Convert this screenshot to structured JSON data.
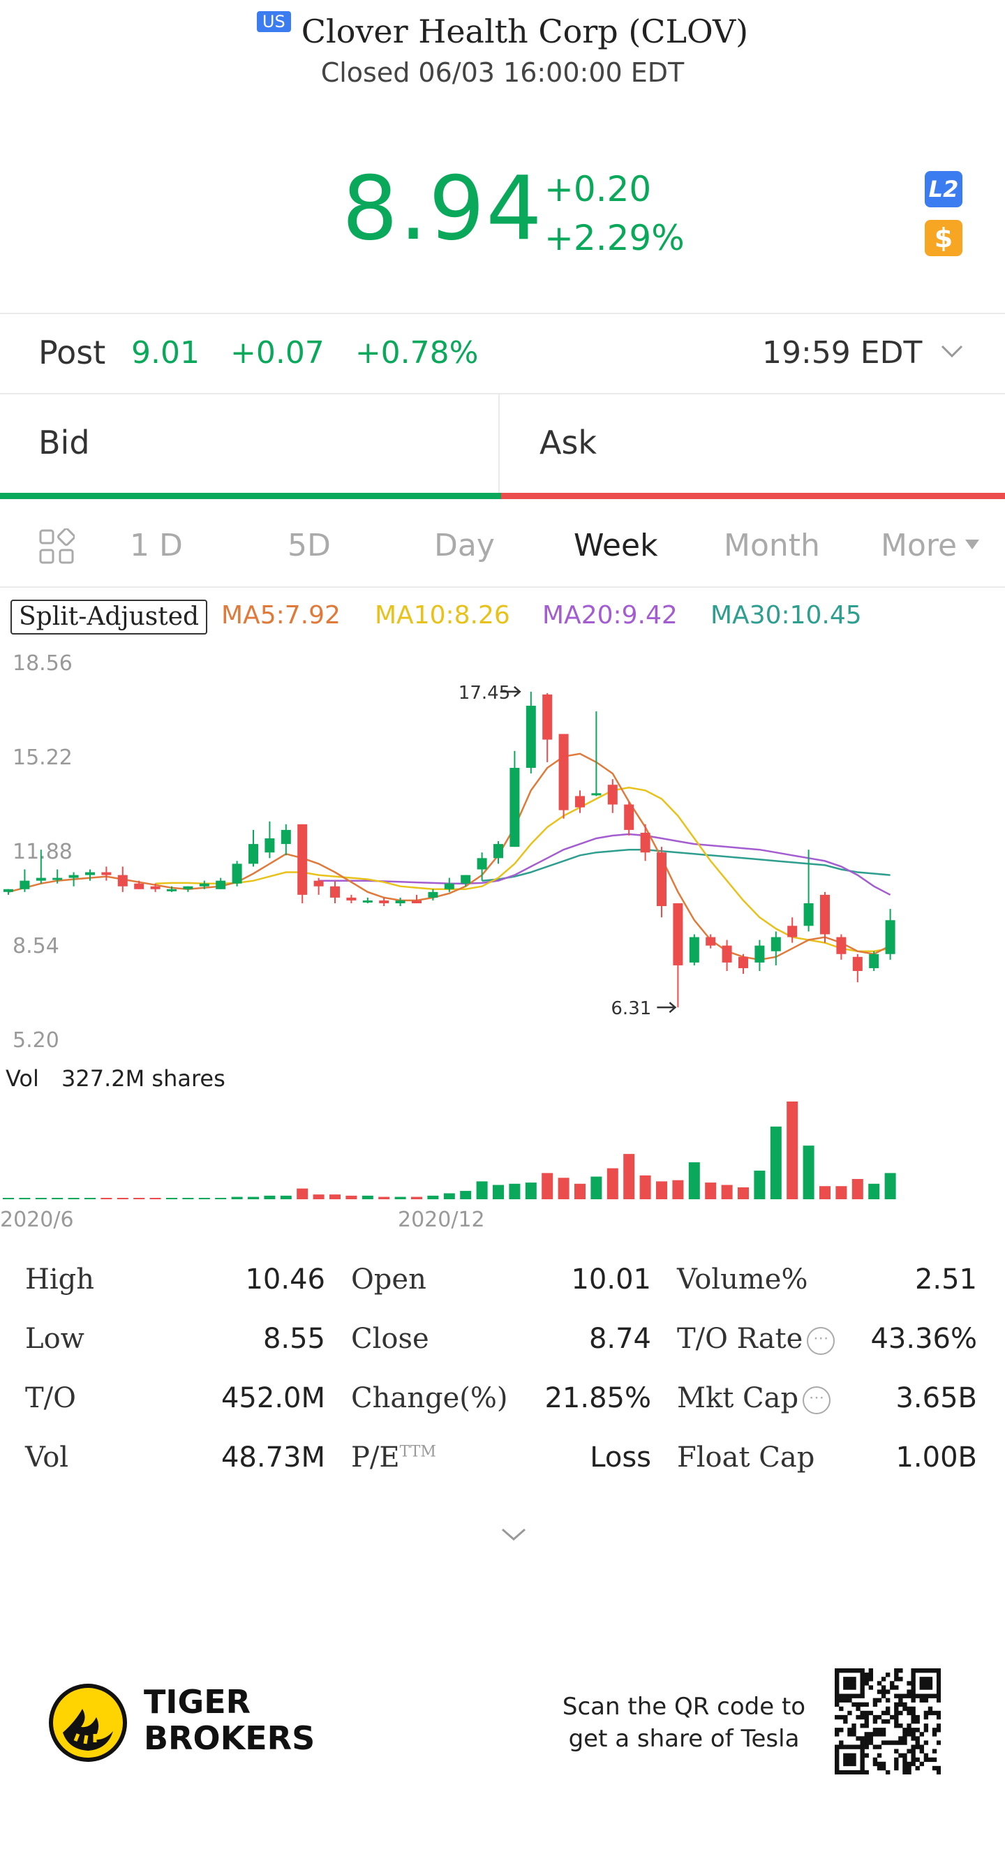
{
  "header": {
    "market_badge": "US",
    "title": "Clover Health Corp (CLOV)",
    "status": "Closed 06/03 16:00:00 EDT",
    "price": "8.94",
    "change": "+0.20",
    "change_pct": "+2.29%",
    "badge_l2": "L2",
    "badge_s": "$"
  },
  "post": {
    "label": "Post",
    "price": "9.01",
    "change": "+0.07",
    "change_pct": "+0.78%",
    "time": "19:59 EDT"
  },
  "quote": {
    "bid": "Bid",
    "ask": "Ask"
  },
  "tabs": [
    "1 D",
    "5D",
    "Day",
    "Week",
    "Month",
    "More"
  ],
  "active_tab": "Week",
  "ma": {
    "split": "Split-Adjusted",
    "ma5": "MA5:7.92",
    "ma10": "MA10:8.26",
    "ma20": "MA20:9.42",
    "ma30": "MA30:10.45"
  },
  "colors": {
    "up": "#0aa85a",
    "down": "#eb4d4d",
    "ma5": "#e07a3a",
    "ma10": "#e8c21a",
    "ma20": "#a35dd0",
    "ma30": "#2e9e8f"
  },
  "chart_data": {
    "type": "candlestick",
    "y_ticks": [
      "18.56",
      "15.22",
      "11.88",
      "8.54",
      "5.20"
    ],
    "ylim": [
      5.2,
      18.56
    ],
    "x_labels": [
      "2020/6",
      "2020/12"
    ],
    "high_marker": "17.45",
    "low_marker": "6.31",
    "vol_label": "Vol",
    "vol_value": "327.2M shares",
    "candles": [
      {
        "o": 10.4,
        "h": 10.5,
        "l": 10.3,
        "c": 10.5
      },
      {
        "o": 10.5,
        "h": 11.2,
        "l": 10.4,
        "c": 10.8
      },
      {
        "o": 10.8,
        "h": 11.9,
        "l": 10.7,
        "c": 10.9
      },
      {
        "o": 10.9,
        "h": 11.2,
        "l": 10.7,
        "c": 10.9
      },
      {
        "o": 10.9,
        "h": 11.1,
        "l": 10.6,
        "c": 11.0
      },
      {
        "o": 11.0,
        "h": 11.2,
        "l": 10.8,
        "c": 11.1
      },
      {
        "o": 11.1,
        "h": 11.3,
        "l": 10.8,
        "c": 11.0
      },
      {
        "o": 11.0,
        "h": 11.3,
        "l": 10.4,
        "c": 10.6
      },
      {
        "o": 10.7,
        "h": 10.8,
        "l": 10.5,
        "c": 10.5
      },
      {
        "o": 10.6,
        "h": 10.7,
        "l": 10.4,
        "c": 10.5
      },
      {
        "o": 10.5,
        "h": 10.6,
        "l": 10.4,
        "c": 10.5
      },
      {
        "o": 10.5,
        "h": 10.6,
        "l": 10.4,
        "c": 10.6
      },
      {
        "o": 10.6,
        "h": 10.8,
        "l": 10.5,
        "c": 10.7
      },
      {
        "o": 10.5,
        "h": 10.9,
        "l": 10.5,
        "c": 10.8
      },
      {
        "o": 10.7,
        "h": 11.5,
        "l": 10.6,
        "c": 11.4
      },
      {
        "o": 11.4,
        "h": 12.6,
        "l": 11.3,
        "c": 12.1
      },
      {
        "o": 11.8,
        "h": 12.9,
        "l": 11.6,
        "c": 12.3
      },
      {
        "o": 12.1,
        "h": 12.8,
        "l": 11.7,
        "c": 12.6
      },
      {
        "o": 12.8,
        "h": 12.8,
        "l": 10.0,
        "c": 10.3
      },
      {
        "o": 10.8,
        "h": 10.9,
        "l": 10.3,
        "c": 10.6
      },
      {
        "o": 10.6,
        "h": 10.8,
        "l": 10.0,
        "c": 10.2
      },
      {
        "o": 10.2,
        "h": 10.3,
        "l": 10.0,
        "c": 10.1
      },
      {
        "o": 10.1,
        "h": 10.2,
        "l": 10.0,
        "c": 10.1
      },
      {
        "o": 10.1,
        "h": 10.2,
        "l": 9.9,
        "c": 10.0
      },
      {
        "o": 10.0,
        "h": 10.2,
        "l": 9.9,
        "c": 10.1
      },
      {
        "o": 10.1,
        "h": 10.3,
        "l": 10.0,
        "c": 10.0
      },
      {
        "o": 10.2,
        "h": 10.5,
        "l": 10.1,
        "c": 10.4
      },
      {
        "o": 10.5,
        "h": 10.9,
        "l": 10.4,
        "c": 10.7
      },
      {
        "o": 10.7,
        "h": 11.0,
        "l": 10.6,
        "c": 11.0
      },
      {
        "o": 11.2,
        "h": 11.8,
        "l": 10.8,
        "c": 11.6
      },
      {
        "o": 11.6,
        "h": 12.2,
        "l": 11.4,
        "c": 12.1
      },
      {
        "o": 12.0,
        "h": 15.4,
        "l": 12.0,
        "c": 14.8
      },
      {
        "o": 14.8,
        "h": 17.5,
        "l": 14.6,
        "c": 17.0
      },
      {
        "o": 17.4,
        "h": 17.45,
        "l": 15.0,
        "c": 15.8
      },
      {
        "o": 16.0,
        "h": 16.0,
        "l": 13.0,
        "c": 13.3
      },
      {
        "o": 13.8,
        "h": 14.0,
        "l": 13.2,
        "c": 13.4
      },
      {
        "o": 13.9,
        "h": 16.8,
        "l": 13.8,
        "c": 13.9
      },
      {
        "o": 14.2,
        "h": 14.4,
        "l": 13.2,
        "c": 13.5
      },
      {
        "o": 13.5,
        "h": 13.6,
        "l": 12.4,
        "c": 12.6
      },
      {
        "o": 12.5,
        "h": 12.8,
        "l": 11.5,
        "c": 11.8
      },
      {
        "o": 11.8,
        "h": 12.0,
        "l": 9.5,
        "c": 9.9
      },
      {
        "o": 10.0,
        "h": 10.0,
        "l": 6.31,
        "c": 7.8
      },
      {
        "o": 7.9,
        "h": 8.9,
        "l": 7.8,
        "c": 8.8
      },
      {
        "o": 8.8,
        "h": 8.9,
        "l": 8.4,
        "c": 8.5
      },
      {
        "o": 8.5,
        "h": 8.7,
        "l": 7.6,
        "c": 7.9
      },
      {
        "o": 8.1,
        "h": 8.2,
        "l": 7.5,
        "c": 7.7
      },
      {
        "o": 7.9,
        "h": 8.7,
        "l": 7.6,
        "c": 8.5
      },
      {
        "o": 8.3,
        "h": 9.0,
        "l": 7.8,
        "c": 8.8
      },
      {
        "o": 9.2,
        "h": 9.5,
        "l": 8.6,
        "c": 8.8
      },
      {
        "o": 9.2,
        "h": 11.9,
        "l": 9.0,
        "c": 10.0
      },
      {
        "o": 10.3,
        "h": 10.4,
        "l": 8.6,
        "c": 8.9
      },
      {
        "o": 8.8,
        "h": 8.9,
        "l": 8.0,
        "c": 8.2
      },
      {
        "o": 8.1,
        "h": 8.2,
        "l": 7.2,
        "c": 7.6
      },
      {
        "o": 7.7,
        "h": 8.3,
        "l": 7.6,
        "c": 8.2
      },
      {
        "o": 8.2,
        "h": 9.8,
        "l": 8.0,
        "c": 9.4
      }
    ],
    "volumes": [
      1,
      1,
      1,
      1,
      1,
      1,
      1,
      1,
      1,
      1,
      1,
      1,
      1,
      1,
      2,
      2,
      3,
      3,
      9,
      4,
      4,
      3,
      3,
      2,
      2,
      2,
      3,
      5,
      7,
      15,
      12,
      13,
      14,
      22,
      18,
      13,
      19,
      26,
      38,
      20,
      15,
      16,
      31,
      14,
      12,
      10,
      24,
      61,
      82,
      45,
      11,
      11,
      17,
      13,
      22
    ],
    "ma5": [
      10.4,
      10.55,
      10.7,
      10.8,
      10.85,
      10.9,
      10.95,
      10.85,
      10.75,
      10.65,
      10.55,
      10.5,
      10.55,
      10.6,
      10.75,
      11.05,
      11.4,
      11.75,
      11.6,
      11.4,
      11.1,
      10.75,
      10.4,
      10.2,
      10.1,
      10.1,
      10.2,
      10.35,
      10.6,
      11.0,
      11.7,
      12.7,
      14.0,
      14.8,
      15.2,
      15.3,
      15.0,
      14.6,
      13.6,
      12.7,
      11.6,
      10.4,
      9.4,
      8.7,
      8.3,
      8.1,
      8.0,
      8.1,
      8.4,
      8.7,
      8.8,
      8.6,
      8.3,
      8.2,
      8.5
    ],
    "ma10": [
      null,
      null,
      null,
      null,
      null,
      null,
      null,
      null,
      null,
      10.7,
      10.72,
      10.72,
      10.7,
      10.7,
      10.72,
      10.8,
      10.95,
      11.1,
      11.1,
      11.0,
      10.95,
      10.9,
      10.85,
      10.75,
      10.6,
      10.55,
      10.5,
      10.5,
      10.5,
      10.6,
      10.9,
      11.4,
      12.1,
      12.7,
      13.1,
      13.4,
      13.7,
      14.0,
      14.1,
      14.0,
      13.7,
      13.1,
      12.3,
      11.5,
      10.8,
      10.1,
      9.5,
      9.1,
      8.8,
      8.7,
      8.6,
      8.4,
      8.3,
      8.3,
      8.4
    ],
    "ma20": [
      null,
      null,
      null,
      null,
      null,
      null,
      null,
      null,
      null,
      null,
      null,
      null,
      null,
      null,
      null,
      null,
      null,
      null,
      null,
      10.8,
      10.8,
      10.8,
      10.8,
      10.78,
      10.76,
      10.74,
      10.72,
      10.7,
      10.7,
      10.72,
      10.8,
      11.0,
      11.3,
      11.6,
      11.9,
      12.1,
      12.3,
      12.4,
      12.45,
      12.4,
      12.3,
      12.2,
      12.1,
      12.05,
      12.0,
      11.95,
      11.9,
      11.8,
      11.7,
      11.6,
      11.5,
      11.3,
      11.0,
      10.6,
      10.3
    ],
    "ma30": [
      null,
      null,
      null,
      null,
      null,
      null,
      null,
      null,
      null,
      null,
      null,
      null,
      null,
      null,
      null,
      null,
      null,
      null,
      null,
      null,
      null,
      null,
      null,
      null,
      null,
      null,
      null,
      null,
      null,
      10.8,
      10.85,
      10.95,
      11.1,
      11.3,
      11.5,
      11.7,
      11.8,
      11.85,
      11.9,
      11.9,
      11.85,
      11.8,
      11.75,
      11.7,
      11.65,
      11.6,
      11.55,
      11.5,
      11.45,
      11.4,
      11.35,
      11.2,
      11.1,
      11.05,
      11.0
    ]
  },
  "stats": [
    {
      "label": "High",
      "value": "10.46"
    },
    {
      "label": "Open",
      "value": "10.01"
    },
    {
      "label": "Volume%",
      "value": "2.51"
    },
    {
      "label": "Low",
      "value": "8.55"
    },
    {
      "label": "Close",
      "value": "8.74"
    },
    {
      "label": "T/O Rate",
      "value": "43.36%"
    },
    {
      "label": "T/O",
      "value": "452.0M"
    },
    {
      "label": "Change(%)",
      "value": "21.85%"
    },
    {
      "label": "Mkt Cap",
      "value": "3.65B"
    },
    {
      "label": "Vol",
      "value": "48.73M"
    },
    {
      "label": "P/E",
      "sup": "TTM",
      "value": "Loss"
    },
    {
      "label": "Float Cap",
      "value": "1.00B"
    }
  ],
  "footer": {
    "brand_line1": "TIGER",
    "brand_line2": "BROKERS",
    "scan_line1": "Scan the QR code to",
    "scan_line2": "get a share of Tesla"
  }
}
